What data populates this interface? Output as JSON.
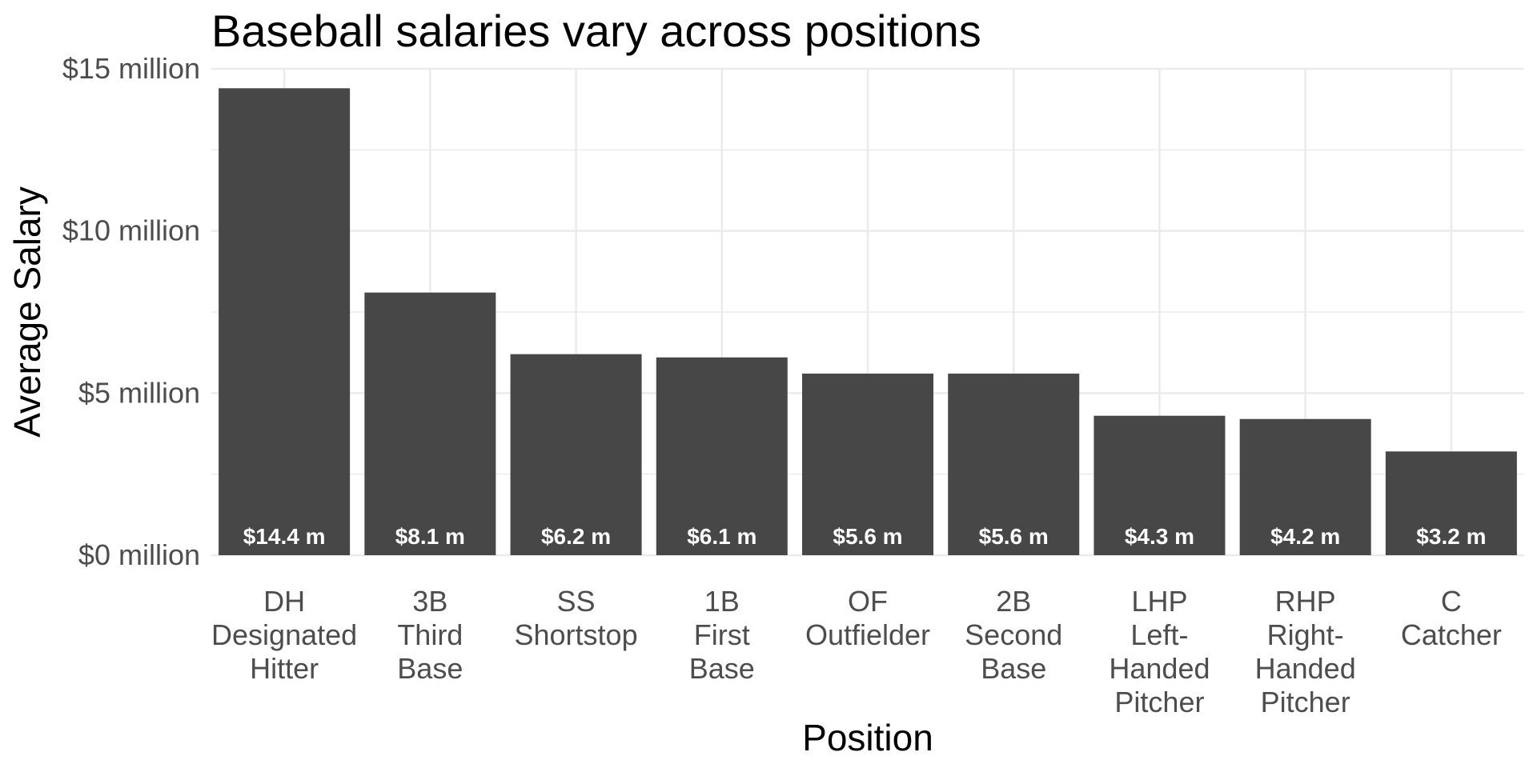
{
  "chart_data": {
    "type": "bar",
    "title": "Baseball salaries vary across positions",
    "xlabel": "Position",
    "ylabel": "Average Salary",
    "ylim": [
      0,
      15
    ],
    "y_ticks": [
      0,
      5,
      10,
      15
    ],
    "y_tick_labels": [
      "$0 million",
      "$5 million",
      "$10 million",
      "$15 million"
    ],
    "grid": true,
    "categories": [
      [
        "DH",
        "Designated",
        "Hitter"
      ],
      [
        "3B",
        "Third",
        "Base"
      ],
      [
        "SS",
        "Shortstop"
      ],
      [
        "1B",
        "First",
        "Base"
      ],
      [
        "OF",
        "Outfielder"
      ],
      [
        "2B",
        "Second",
        "Base"
      ],
      [
        "LHP",
        "Left-",
        "Handed",
        "Pitcher"
      ],
      [
        "RHP",
        "Right-",
        "Handed",
        "Pitcher"
      ],
      [
        "C",
        "Catcher"
      ]
    ],
    "values": [
      14.4,
      8.1,
      6.2,
      6.1,
      5.6,
      5.6,
      4.3,
      4.2,
      3.2
    ],
    "data_labels": [
      "$14.4 m",
      "$8.1 m",
      "$6.2 m",
      "$6.1 m",
      "$5.6 m",
      "$5.6 m",
      "$4.3 m",
      "$4.2 m",
      "$3.2 m"
    ],
    "bar_color": "#474747",
    "grid_color": "#ebebeb"
  }
}
